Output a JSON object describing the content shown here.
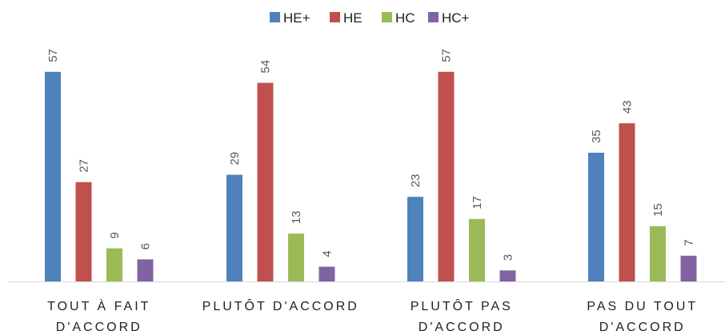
{
  "chart_data": {
    "type": "bar",
    "title": "",
    "xlabel": "",
    "ylabel": "",
    "ylim": [
      0,
      60
    ],
    "grid": false,
    "legend_position": "top",
    "categories": [
      [
        "TOUT À FAIT",
        "D'ACCORD"
      ],
      [
        "PLUTÔT D'ACCORD"
      ],
      [
        "PLUTÔT PAS",
        "D'ACCORD"
      ],
      [
        "PAS DU TOUT",
        "D'ACCORD"
      ]
    ],
    "series": [
      {
        "name": "HE+",
        "color": "#4F81BD",
        "values": [
          57,
          29,
          23,
          35
        ]
      },
      {
        "name": "HE",
        "color": "#C0504D",
        "values": [
          27,
          54,
          57,
          43
        ]
      },
      {
        "name": "HC",
        "color": "#9BBB59",
        "values": [
          9,
          13,
          17,
          15
        ]
      },
      {
        "name": "HC+",
        "color": "#8064A2",
        "values": [
          6,
          4,
          3,
          7
        ]
      }
    ]
  }
}
